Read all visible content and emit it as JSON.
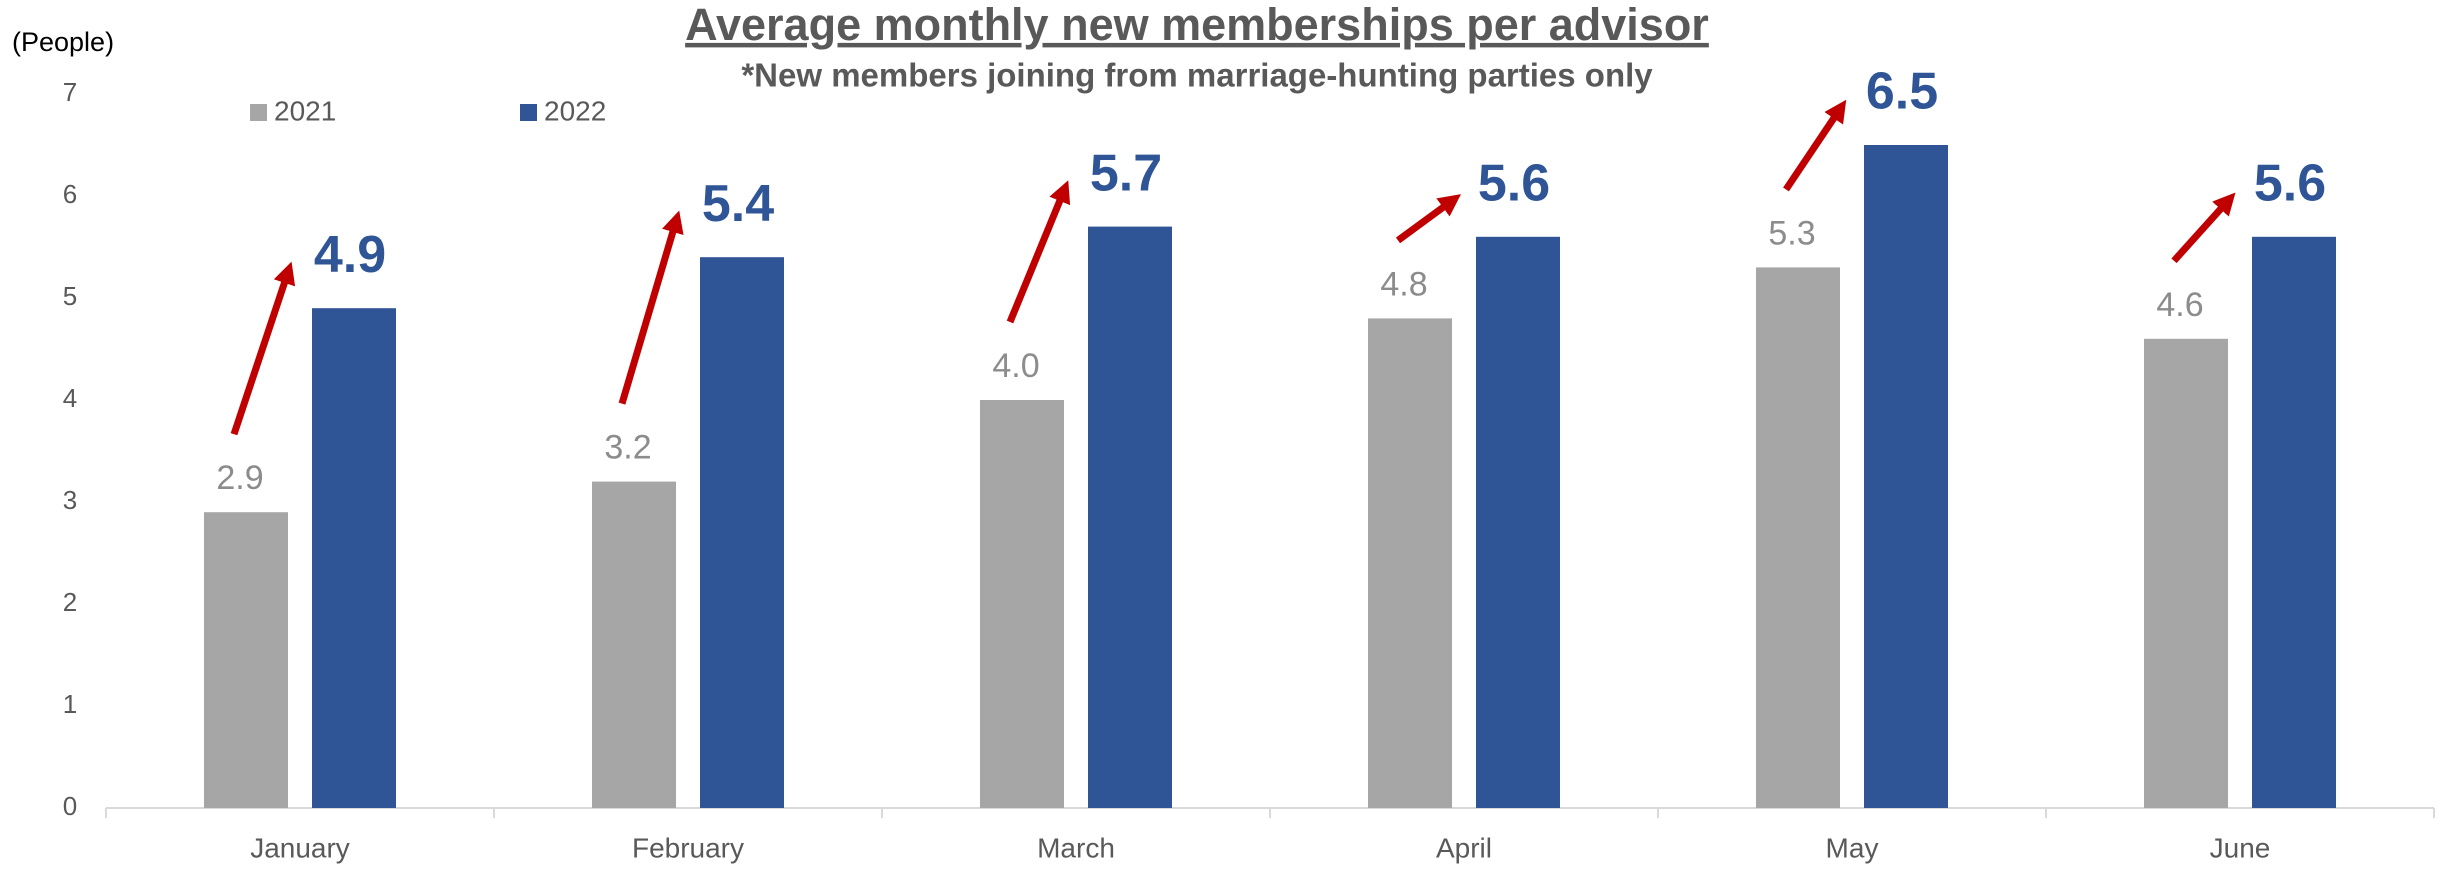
{
  "chart_data": {
    "type": "bar",
    "title": "Average monthly new memberships per advisor",
    "subtitle": "*New members joining from marriage-hunting parties only",
    "y_label": "(People)",
    "categories": [
      "January",
      "February",
      "March",
      "April",
      "May",
      "June"
    ],
    "series": [
      {
        "name": "2021",
        "color": "#a6a6a6",
        "values": [
          2.9,
          3.2,
          4,
          4.8,
          5.3,
          4.6
        ],
        "value_labels": [
          "2.9",
          "3.2",
          "4.0",
          "4.8",
          "5.3",
          "4.6"
        ]
      },
      {
        "name": "2022",
        "color": "#2f5597",
        "values": [
          4.9,
          5.4,
          5.7,
          5.6,
          6.5,
          5.6
        ],
        "value_labels": [
          "4.9",
          "5.4",
          "5.7",
          "5.6",
          "6.5",
          "5.6"
        ]
      }
    ],
    "ylim": [
      0,
      7
    ],
    "yticks": [
      0,
      1,
      2,
      3,
      4,
      5,
      6,
      7
    ],
    "grid": false,
    "legend": "top-left"
  }
}
